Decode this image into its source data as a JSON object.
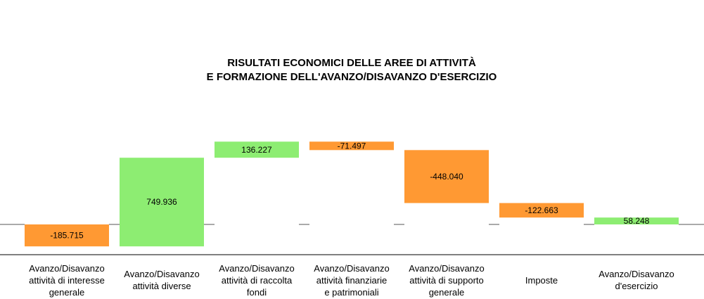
{
  "chart_data": {
    "type": "bar",
    "subtype": "waterfall",
    "title": [
      "RISULTATI ECONOMICI DELLE AREE DI ATTIVITÀ",
      "E FORMAZIONE DELL'AVANZO/DISAVANZO D'ESERCIZIO"
    ],
    "categories": [
      [
        "Avanzo/Disavanzo",
        "attività di interesse",
        "generale"
      ],
      [
        "Avanzo/Disavanzo",
        "attività diverse"
      ],
      [
        "Avanzo/Disavanzo",
        "attività di raccolta",
        "fondi"
      ],
      [
        "Avanzo/Disavanzo",
        "attività finanziarie",
        "e patrimoniali"
      ],
      [
        "Avanzo/Disavanzo",
        "attività di supporto",
        "generale"
      ],
      [
        "Imposte"
      ],
      [
        "Avanzo/Disavanzo",
        "d'esercizio"
      ]
    ],
    "values": [
      -185715,
      749936,
      136227,
      -71497,
      -448040,
      -122663,
      58248
    ],
    "value_labels": [
      "-185.715",
      "749.936",
      "136.227",
      "-71.497",
      "-448.040",
      "-122.663",
      "58.248"
    ],
    "total_index": 6,
    "colors": {
      "positive": "#8ded72",
      "negative": "#ff9933"
    },
    "grid": false,
    "legend": "none"
  }
}
